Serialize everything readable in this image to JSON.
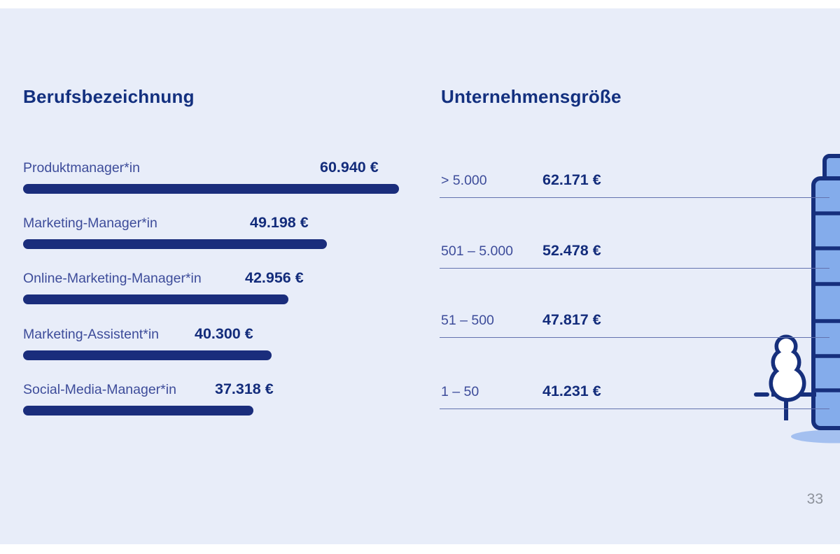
{
  "page": {
    "number": "33"
  },
  "left_section": {
    "title": "Berufsbezeichnung",
    "rows": [
      {
        "label": "Produktmanager*in",
        "value": 60940,
        "display": "60.940 €"
      },
      {
        "label": "Marketing-Manager*in",
        "value": 49198,
        "display": "49.198 €"
      },
      {
        "label": "Online-Marketing-Manager*in",
        "value": 42956,
        "display": "42.956 €"
      },
      {
        "label": "Marketing-Assistent*in",
        "value": 40300,
        "display": "40.300 €"
      },
      {
        "label": "Social-Media-Manager*in",
        "value": 37318,
        "display": "37.318 €"
      }
    ]
  },
  "right_section": {
    "title": "Unternehmensgröße",
    "rows": [
      {
        "label": "> 5.000",
        "value": 62171,
        "display": "62.171 €"
      },
      {
        "label": "501 – 5.000",
        "value": 52478,
        "display": "52.478 €"
      },
      {
        "label": "51 – 500",
        "value": 47817,
        "display": "47.817 €"
      },
      {
        "label": "1 – 50",
        "value": 41231,
        "display": "41.231 €"
      }
    ]
  },
  "illustration": {
    "building": "office-building",
    "tree": "tree",
    "shadow": "ground-shadow"
  },
  "colors": {
    "panel_background": "#e8edf9",
    "navy_dark": "#132c7b",
    "navy_bar": "#1a2d7c",
    "label_blue": "#3d4c9a",
    "line_blue": "#6272ae",
    "building_fill": "#84aceb",
    "shadow_fill": "#a4c0f0",
    "page_number_gray": "#8d929b"
  },
  "chart_data": [
    {
      "type": "bar",
      "orientation": "horizontal",
      "title": "Berufsbezeichnung",
      "categories": [
        "Produktmanager*in",
        "Marketing-Manager*in",
        "Online-Marketing-Manager*in",
        "Marketing-Assistent*in",
        "Social-Media-Manager*in"
      ],
      "values": [
        60940,
        49198,
        42956,
        40300,
        37318
      ],
      "value_labels": [
        "60.940 €",
        "49.198 €",
        "42.956 €",
        "40.300 €",
        "37.318 €"
      ],
      "unit": "EUR",
      "xlim": [
        0,
        60940
      ],
      "grid": false,
      "legend": false
    },
    {
      "type": "table",
      "title": "Unternehmensgröße",
      "categories": [
        "> 5.000",
        "501 – 5.000",
        "51 – 500",
        "1 – 50"
      ],
      "values": [
        62171,
        52478,
        47817,
        41231
      ],
      "value_labels": [
        "62.171 €",
        "52.478 €",
        "47.817 €",
        "41.231 €"
      ],
      "unit": "EUR",
      "grid": false,
      "legend": false
    }
  ]
}
